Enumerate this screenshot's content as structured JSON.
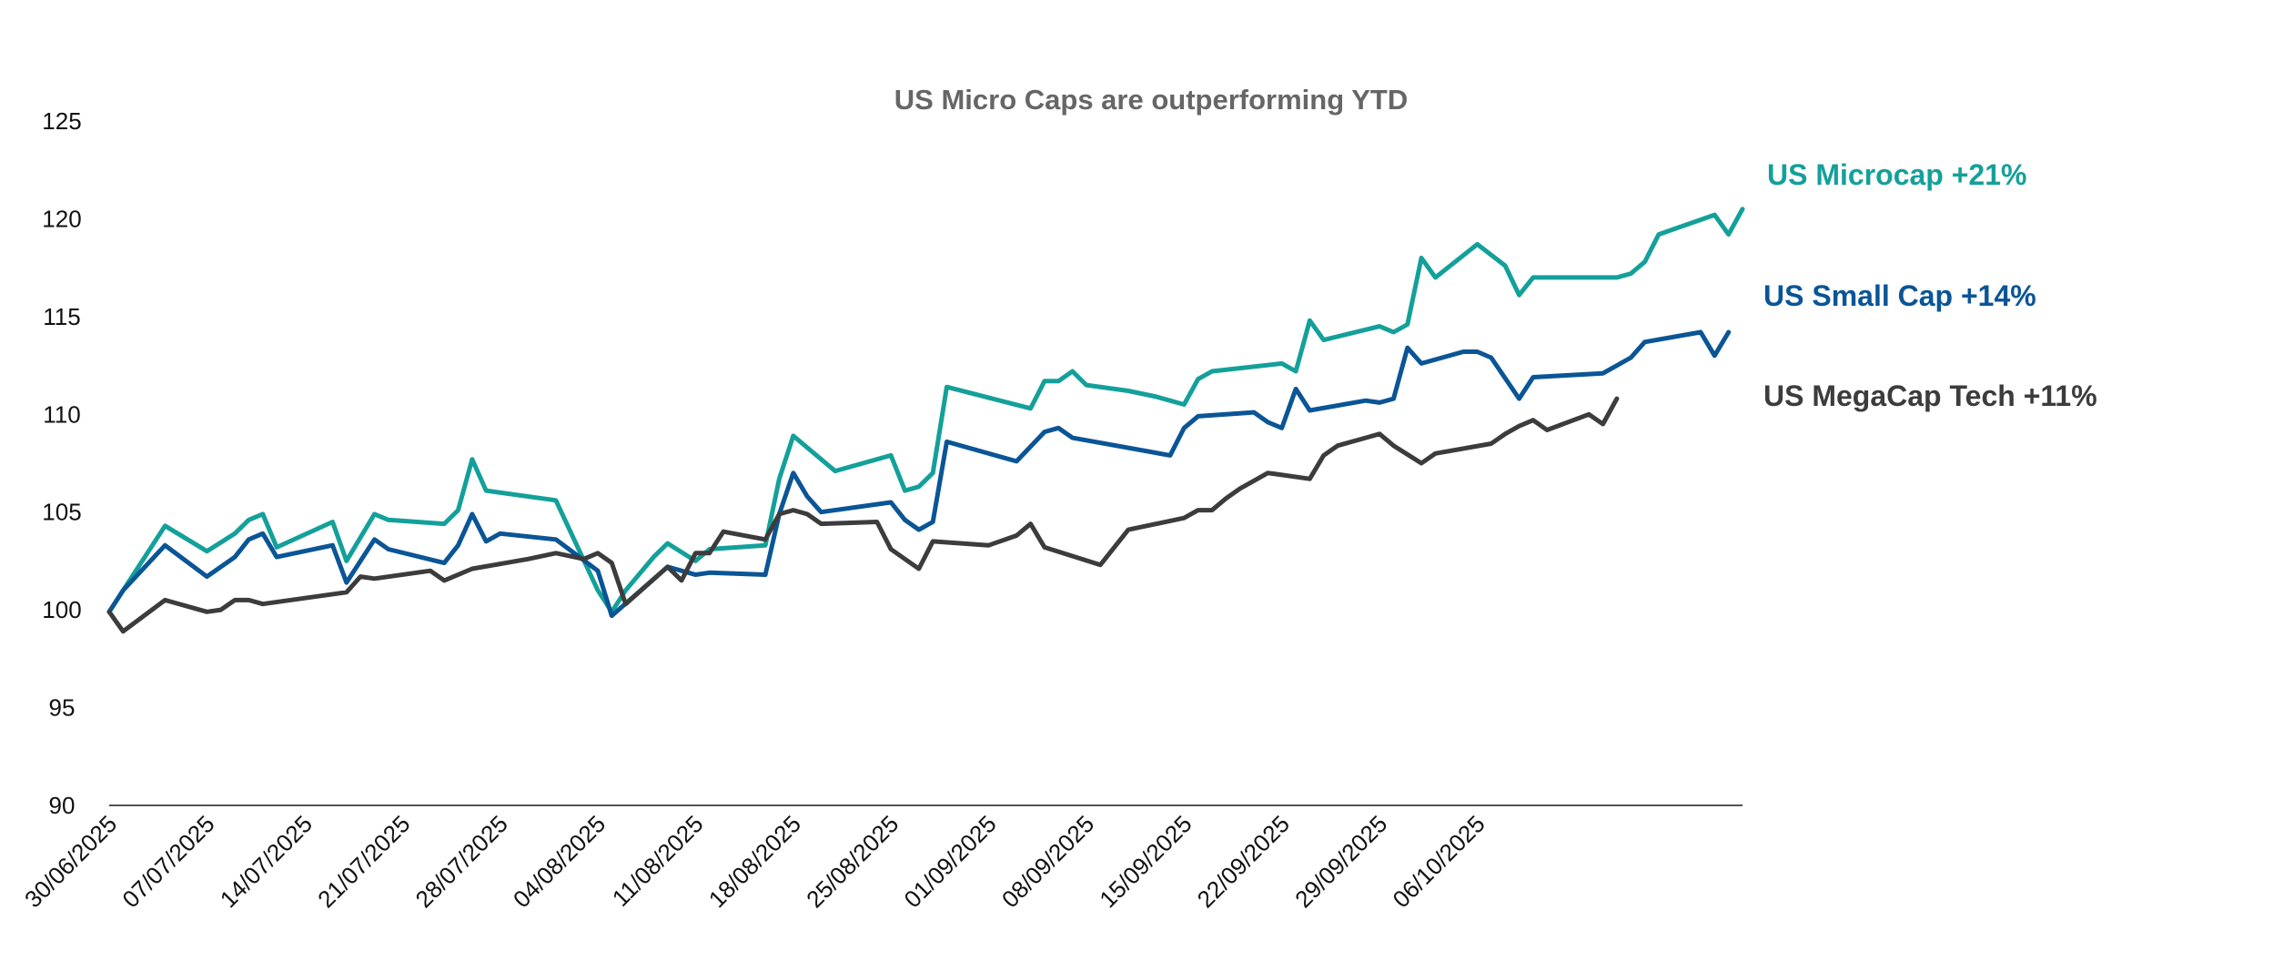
{
  "chart_data": {
    "type": "line",
    "title": "US Micro Caps are outperforming YTD",
    "xlabel": "",
    "ylabel": "",
    "ylim": [
      90,
      125
    ],
    "yticks": [
      90,
      95,
      100,
      105,
      110,
      115,
      120,
      125
    ],
    "xtick_labels": [
      "30/06/2025",
      "07/07/2025",
      "14/07/2025",
      "21/07/2025",
      "28/07/2025",
      "04/08/2025",
      "11/08/2025",
      "18/08/2025",
      "25/08/2025",
      "01/09/2025",
      "08/09/2025",
      "15/09/2025",
      "22/09/2025",
      "29/09/2025",
      "06/10/2025"
    ],
    "x_start": "30/06/2025",
    "x_end": "09/10/2025",
    "grid": false,
    "legend": "end-of-line labels",
    "series": [
      {
        "name": "US Microcap +21%",
        "color": "#14A09A",
        "points": [
          [
            "30/06/2025",
            99.9
          ],
          [
            "04/07/2025",
            104.3
          ],
          [
            "07/07/2025",
            103.0
          ],
          [
            "09/07/2025",
            103.9
          ],
          [
            "10/07/2025",
            104.6
          ],
          [
            "11/07/2025",
            104.9
          ],
          [
            "12/07/2025",
            103.2
          ],
          [
            "16/07/2025",
            104.5
          ],
          [
            "17/07/2025",
            102.5
          ],
          [
            "19/07/2025",
            104.9
          ],
          [
            "20/07/2025",
            104.6
          ],
          [
            "24/07/2025",
            104.4
          ],
          [
            "25/07/2025",
            105.1
          ],
          [
            "26/07/2025",
            107.7
          ],
          [
            "27/07/2025",
            106.1
          ],
          [
            "01/08/2025",
            105.6
          ],
          [
            "04/08/2025",
            101.0
          ],
          [
            "05/08/2025",
            99.9
          ],
          [
            "06/08/2025",
            101.0
          ],
          [
            "08/08/2025",
            102.7
          ],
          [
            "09/08/2025",
            103.4
          ],
          [
            "11/08/2025",
            102.5
          ],
          [
            "12/08/2025",
            103.1
          ],
          [
            "16/08/2025",
            103.3
          ],
          [
            "17/08/2025",
            106.7
          ],
          [
            "18/08/2025",
            108.9
          ],
          [
            "21/08/2025",
            107.1
          ],
          [
            "25/08/2025",
            107.9
          ],
          [
            "26/08/2025",
            106.1
          ],
          [
            "27/08/2025",
            106.3
          ],
          [
            "28/08/2025",
            107.0
          ],
          [
            "29/08/2025",
            111.4
          ],
          [
            "04/09/2025",
            110.3
          ],
          [
            "05/09/2025",
            111.7
          ],
          [
            "06/09/2025",
            111.7
          ],
          [
            "07/09/2025",
            112.2
          ],
          [
            "08/09/2025",
            111.5
          ],
          [
            "11/09/2025",
            111.2
          ],
          [
            "13/09/2025",
            110.9
          ],
          [
            "15/09/2025",
            110.5
          ],
          [
            "16/09/2025",
            111.8
          ],
          [
            "17/09/2025",
            112.2
          ],
          [
            "22/09/2025",
            112.6
          ],
          [
            "23/09/2025",
            112.2
          ],
          [
            "24/09/2025",
            114.8
          ],
          [
            "25/09/2025",
            113.8
          ],
          [
            "29/09/2025",
            114.5
          ],
          [
            "30/09/2025",
            114.2
          ],
          [
            "01/10/2025",
            114.6
          ],
          [
            "02/10/2025",
            118.0
          ],
          [
            "03/10/2025",
            117.0
          ],
          [
            "06/10/2025",
            118.7
          ],
          [
            "08/10/2025",
            117.6
          ],
          [
            "09/10/2025",
            116.1
          ],
          [
            "10/10/2025",
            117.0
          ],
          [
            "14/10/2025",
            117.0
          ],
          [
            "16/10/2025",
            117.0
          ],
          [
            "17/10/2025",
            117.2
          ],
          [
            "18/10/2025",
            117.8
          ],
          [
            "19/10/2025",
            119.2
          ],
          [
            "23/10/2025",
            120.2
          ],
          [
            "24/10/2025",
            119.2
          ],
          [
            "25/10/2025",
            120.5
          ]
        ]
      },
      {
        "name": "US Small Cap +14%",
        "color": "#0A5596",
        "points": [
          [
            "30/06/2025",
            99.9
          ],
          [
            "01/07/2025",
            101.0
          ],
          [
            "04/07/2025",
            103.3
          ],
          [
            "07/07/2025",
            101.7
          ],
          [
            "09/07/2025",
            102.7
          ],
          [
            "10/07/2025",
            103.6
          ],
          [
            "11/07/2025",
            103.9
          ],
          [
            "12/07/2025",
            102.7
          ],
          [
            "16/07/2025",
            103.3
          ],
          [
            "17/07/2025",
            101.4
          ],
          [
            "18/07/2025",
            102.5
          ],
          [
            "19/07/2025",
            103.6
          ],
          [
            "20/07/2025",
            103.1
          ],
          [
            "24/07/2025",
            102.4
          ],
          [
            "25/07/2025",
            103.3
          ],
          [
            "26/07/2025",
            104.9
          ],
          [
            "27/07/2025",
            103.5
          ],
          [
            "28/07/2025",
            103.9
          ],
          [
            "01/08/2025",
            103.6
          ],
          [
            "04/08/2025",
            102.0
          ],
          [
            "05/08/2025",
            99.7
          ],
          [
            "09/08/2025",
            102.2
          ],
          [
            "11/08/2025",
            101.8
          ],
          [
            "12/08/2025",
            101.9
          ],
          [
            "16/08/2025",
            101.8
          ],
          [
            "17/08/2025",
            104.9
          ],
          [
            "18/08/2025",
            107.0
          ],
          [
            "19/08/2025",
            105.8
          ],
          [
            "20/08/2025",
            105.0
          ],
          [
            "25/08/2025",
            105.5
          ],
          [
            "26/08/2025",
            104.6
          ],
          [
            "27/08/2025",
            104.1
          ],
          [
            "28/08/2025",
            104.5
          ],
          [
            "29/08/2025",
            108.6
          ],
          [
            "03/09/2025",
            107.6
          ],
          [
            "05/09/2025",
            109.1
          ],
          [
            "06/09/2025",
            109.3
          ],
          [
            "07/09/2025",
            108.8
          ],
          [
            "14/09/2025",
            107.9
          ],
          [
            "15/09/2025",
            109.3
          ],
          [
            "16/09/2025",
            109.9
          ],
          [
            "20/09/2025",
            110.1
          ],
          [
            "21/09/2025",
            109.6
          ],
          [
            "22/09/2025",
            109.3
          ],
          [
            "23/09/2025",
            111.3
          ],
          [
            "24/09/2025",
            110.2
          ],
          [
            "28/09/2025",
            110.7
          ],
          [
            "29/09/2025",
            110.6
          ],
          [
            "30/09/2025",
            110.8
          ],
          [
            "01/10/2025",
            113.4
          ],
          [
            "02/10/2025",
            112.6
          ],
          [
            "05/10/2025",
            113.2
          ],
          [
            "06/10/2025",
            113.2
          ],
          [
            "07/10/2025",
            112.9
          ],
          [
            "09/10/2025",
            110.8
          ],
          [
            "10/10/2025",
            111.9
          ],
          [
            "15/10/2025",
            112.1
          ],
          [
            "17/10/2025",
            112.9
          ],
          [
            "18/10/2025",
            113.7
          ],
          [
            "22/10/2025",
            114.2
          ],
          [
            "23/10/2025",
            113.0
          ],
          [
            "24/10/2025",
            114.2
          ]
        ]
      },
      {
        "name": "US MegaCap Tech +11%",
        "color": "#3C3C3C",
        "points": [
          [
            "30/06/2025",
            99.9
          ],
          [
            "01/07/2025",
            98.9
          ],
          [
            "04/07/2025",
            100.5
          ],
          [
            "07/07/2025",
            99.9
          ],
          [
            "08/07/2025",
            100.0
          ],
          [
            "09/07/2025",
            100.5
          ],
          [
            "10/07/2025",
            100.5
          ],
          [
            "11/07/2025",
            100.3
          ],
          [
            "17/07/2025",
            100.9
          ],
          [
            "18/07/2025",
            101.7
          ],
          [
            "19/07/2025",
            101.6
          ],
          [
            "23/07/2025",
            102.0
          ],
          [
            "24/07/2025",
            101.5
          ],
          [
            "26/07/2025",
            102.1
          ],
          [
            "30/07/2025",
            102.6
          ],
          [
            "01/08/2025",
            102.9
          ],
          [
            "03/08/2025",
            102.6
          ],
          [
            "04/08/2025",
            102.9
          ],
          [
            "05/08/2025",
            102.4
          ],
          [
            "06/08/2025",
            100.3
          ],
          [
            "09/08/2025",
            102.2
          ],
          [
            "10/08/2025",
            101.5
          ],
          [
            "11/08/2025",
            102.9
          ],
          [
            "12/08/2025",
            102.9
          ],
          [
            "13/08/2025",
            104.0
          ],
          [
            "16/08/2025",
            103.6
          ],
          [
            "17/08/2025",
            104.9
          ],
          [
            "18/08/2025",
            105.1
          ],
          [
            "19/08/2025",
            104.9
          ],
          [
            "20/08/2025",
            104.4
          ],
          [
            "24/08/2025",
            104.5
          ],
          [
            "25/08/2025",
            103.1
          ],
          [
            "27/08/2025",
            102.1
          ],
          [
            "28/08/2025",
            103.5
          ],
          [
            "01/09/2025",
            103.3
          ],
          [
            "03/09/2025",
            103.8
          ],
          [
            "04/09/2025",
            104.4
          ],
          [
            "05/09/2025",
            103.2
          ],
          [
            "09/09/2025",
            102.3
          ],
          [
            "11/09/2025",
            104.1
          ],
          [
            "15/09/2025",
            104.7
          ],
          [
            "16/09/2025",
            105.1
          ],
          [
            "17/09/2025",
            105.1
          ],
          [
            "18/09/2025",
            105.7
          ],
          [
            "19/09/2025",
            106.2
          ],
          [
            "21/09/2025",
            107.0
          ],
          [
            "24/09/2025",
            106.7
          ],
          [
            "25/09/2025",
            107.9
          ],
          [
            "26/09/2025",
            108.4
          ],
          [
            "28/09/2025",
            108.8
          ],
          [
            "29/09/2025",
            109.0
          ],
          [
            "30/09/2025",
            108.4
          ],
          [
            "02/10/2025",
            107.5
          ],
          [
            "03/10/2025",
            108.0
          ],
          [
            "07/10/2025",
            108.5
          ],
          [
            "08/10/2025",
            109.0
          ],
          [
            "09/10/2025",
            109.4
          ],
          [
            "10/10/2025",
            109.7
          ],
          [
            "11/10/2025",
            109.2
          ],
          [
            "14/10/2025",
            110.0
          ],
          [
            "15/10/2025",
            109.5
          ],
          [
            "16/10/2025",
            110.8
          ]
        ]
      }
    ]
  }
}
